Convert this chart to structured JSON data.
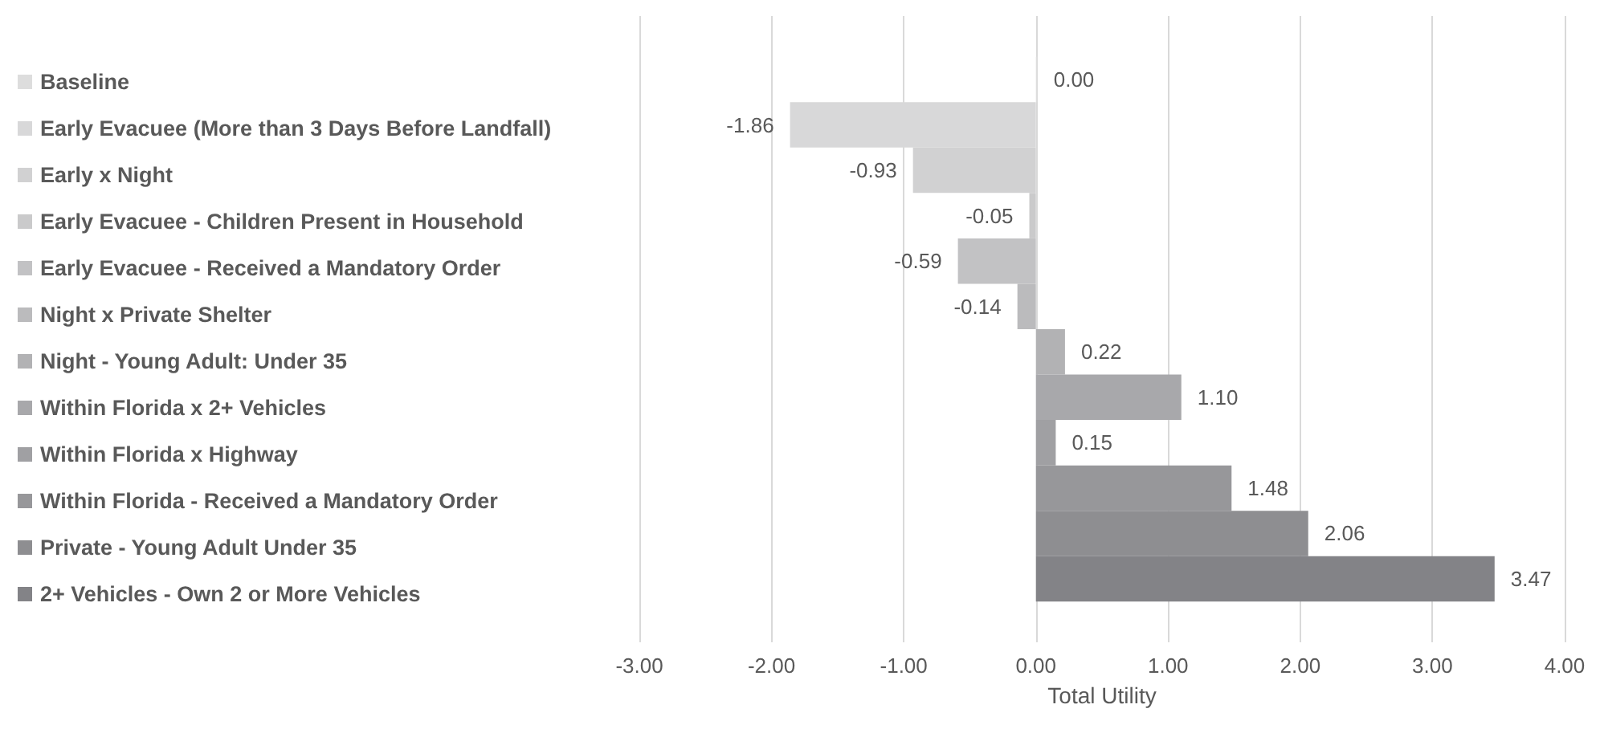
{
  "chart_data": {
    "type": "bar",
    "orientation": "horizontal",
    "xlabel": "Total Utility",
    "categories": [
      null
    ],
    "series": [
      {
        "name": "Baseline",
        "color": "#dddddd",
        "values": [
          0.0
        ],
        "value_labels": [
          "0.00"
        ]
      },
      {
        "name": "Early Evacuee (More than 3 Days Before Landfall)",
        "color": "#d8d8d9",
        "values": [
          -1.86
        ],
        "value_labels": [
          "-1.86"
        ]
      },
      {
        "name": "Early x Night",
        "color": "#d1d1d2",
        "values": [
          -0.93
        ],
        "value_labels": [
          "-0.93"
        ]
      },
      {
        "name": "Early Evacuee - Children Present in Household",
        "color": "#cacacb",
        "values": [
          -0.05
        ],
        "value_labels": [
          "-0.05"
        ]
      },
      {
        "name": "Early Evacuee - Received a Mandatory Order",
        "color": "#c2c2c4",
        "values": [
          -0.59
        ],
        "value_labels": [
          "-0.59"
        ]
      },
      {
        "name": "Night x Private Shelter",
        "color": "#bbbbbd",
        "values": [
          -0.14
        ],
        "value_labels": [
          "-0.14"
        ]
      },
      {
        "name": "Night - Young Adult: Under 35",
        "color": "#b2b2b4",
        "values": [
          0.22
        ],
        "value_labels": [
          "0.22"
        ]
      },
      {
        "name": "Within Florida x 2+ Vehicles",
        "color": "#a8a8ab",
        "values": [
          1.1
        ],
        "value_labels": [
          "1.10"
        ]
      },
      {
        "name": "Within Florida x Highway",
        "color": "#a0a0a3",
        "values": [
          0.15
        ],
        "value_labels": [
          "0.15"
        ]
      },
      {
        "name": "Within Florida - Received a Mandatory Order",
        "color": "#97979a",
        "values": [
          1.48
        ],
        "value_labels": [
          "1.48"
        ]
      },
      {
        "name": "Private - Young Adult Under 35",
        "color": "#8e8e91",
        "values": [
          2.06
        ],
        "value_labels": [
          "2.06"
        ]
      },
      {
        "name": "2+ Vehicles - Own 2 or More Vehicles",
        "color": "#838387",
        "values": [
          3.47
        ],
        "value_labels": [
          "3.47"
        ]
      }
    ],
    "xlim": [
      -3,
      4
    ],
    "xticks": [
      {
        "value": -3,
        "label": "-3.00"
      },
      {
        "value": -2,
        "label": "-2.00"
      },
      {
        "value": -1,
        "label": "-1.00"
      },
      {
        "value": 0,
        "label": "0.00"
      },
      {
        "value": 1,
        "label": "1.00"
      },
      {
        "value": 2,
        "label": "2.00"
      },
      {
        "value": 3,
        "label": "3.00"
      },
      {
        "value": 4,
        "label": "4.00"
      }
    ],
    "grid": "x",
    "legend": "left"
  }
}
